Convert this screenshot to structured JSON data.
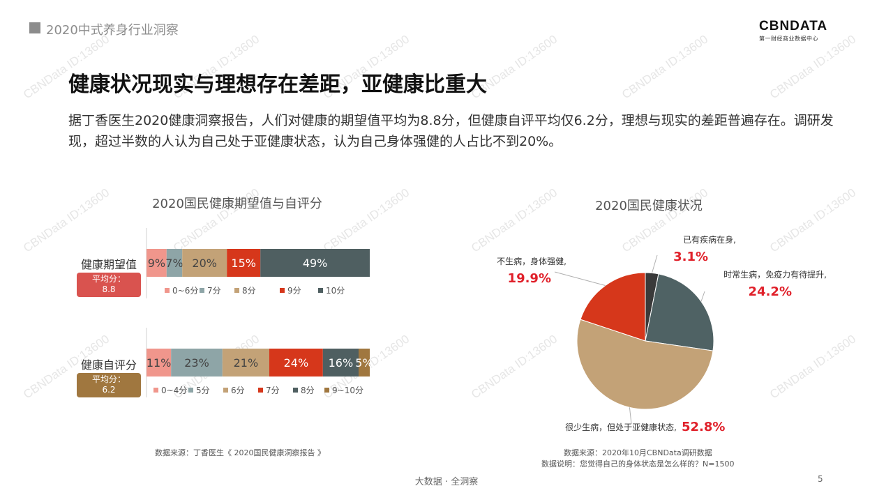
{
  "header": {
    "section": "2020中式养身行业洞察"
  },
  "logo": {
    "main": "CBNDATA",
    "sub": "第一财经商业数据中心"
  },
  "title": "健康状况现实与理想存在差距，亚健康比重大",
  "description": "据丁香医生2020健康洞察报告，人们对健康的期望值平均为8.8分，但健康自评平均仅6.2分，理想与现实的差距普遍存在。调研发现，超过半数的人认为自己处于亚健康状态，认为自己身体强健的人占比不到20%。",
  "watermark": "CBNData ID:13600",
  "left_chart": {
    "title": "2020国民健康期望值与自评分",
    "source": "数据来源：丁香医生《 2020国民健康洞察报告 》",
    "rows": [
      {
        "label": "健康期望值",
        "avg_label": "平均分：",
        "avg_value": "8.8",
        "avg_color": "#d9534f"
      },
      {
        "label": "健康自评分",
        "avg_label": "平均分：",
        "avg_value": "6.2",
        "avg_color": "#a0773f"
      }
    ]
  },
  "right_chart": {
    "title": "2020国民健康状况",
    "source_line1": "数据来源：2020年10月CBNData调研数据",
    "source_line2": "数据说明：您觉得自己的身体状态是怎么样的？N=1500"
  },
  "chart_data": [
    {
      "type": "bar",
      "orientation": "horizontal",
      "stacked": true,
      "title": "2020国民健康期望值与自评分",
      "categories": [
        "健康期望值"
      ],
      "series": [
        {
          "name": "0~6分",
          "values": [
            9
          ],
          "color": "#f0968c",
          "label": "9%"
        },
        {
          "name": "7分",
          "values": [
            7
          ],
          "color": "#8ea5a7",
          "label": "7%"
        },
        {
          "name": "8分",
          "values": [
            20
          ],
          "color": "#c3a277",
          "label": "20%"
        },
        {
          "name": "9分",
          "values": [
            15
          ],
          "color": "#d6371b",
          "label": "15%"
        },
        {
          "name": "10分",
          "values": [
            49
          ],
          "color": "#4f5f61",
          "label": "49%"
        }
      ]
    },
    {
      "type": "bar",
      "orientation": "horizontal",
      "stacked": true,
      "categories": [
        "健康自评分"
      ],
      "series": [
        {
          "name": "0~4分",
          "values": [
            11
          ],
          "color": "#f0968c",
          "label": "11%"
        },
        {
          "name": "5分",
          "values": [
            23
          ],
          "color": "#8ea5a7",
          "label": "23%"
        },
        {
          "name": "6分",
          "values": [
            21
          ],
          "color": "#c3a277",
          "label": "21%"
        },
        {
          "name": "7分",
          "values": [
            24
          ],
          "color": "#d6371b",
          "label": "24%"
        },
        {
          "name": "8分",
          "values": [
            16
          ],
          "color": "#4f5f61",
          "label": "16%"
        },
        {
          "name": "9~10分",
          "values": [
            5
          ],
          "color": "#a0773f",
          "label": "5%"
        }
      ]
    },
    {
      "type": "pie",
      "title": "2020国民健康状况",
      "slices": [
        {
          "label": "已有疾病在身,",
          "value": 3.1,
          "value_label": "3.1%",
          "color": "#3a3a3a"
        },
        {
          "label": "时常生病，免疫力有待提升,",
          "value": 24.2,
          "value_label": "24.2%",
          "color": "#4f6264"
        },
        {
          "label": "很少生病，但处于亚健康状态,",
          "value": 52.8,
          "value_label": "52.8%",
          "color": "#c3a277"
        },
        {
          "label": "不生病，身体强健,",
          "value": 19.9,
          "value_label": "19.9%",
          "color": "#d6371b"
        }
      ]
    }
  ],
  "footer": {
    "center": "大数据 · 全洞察",
    "page": "5"
  }
}
